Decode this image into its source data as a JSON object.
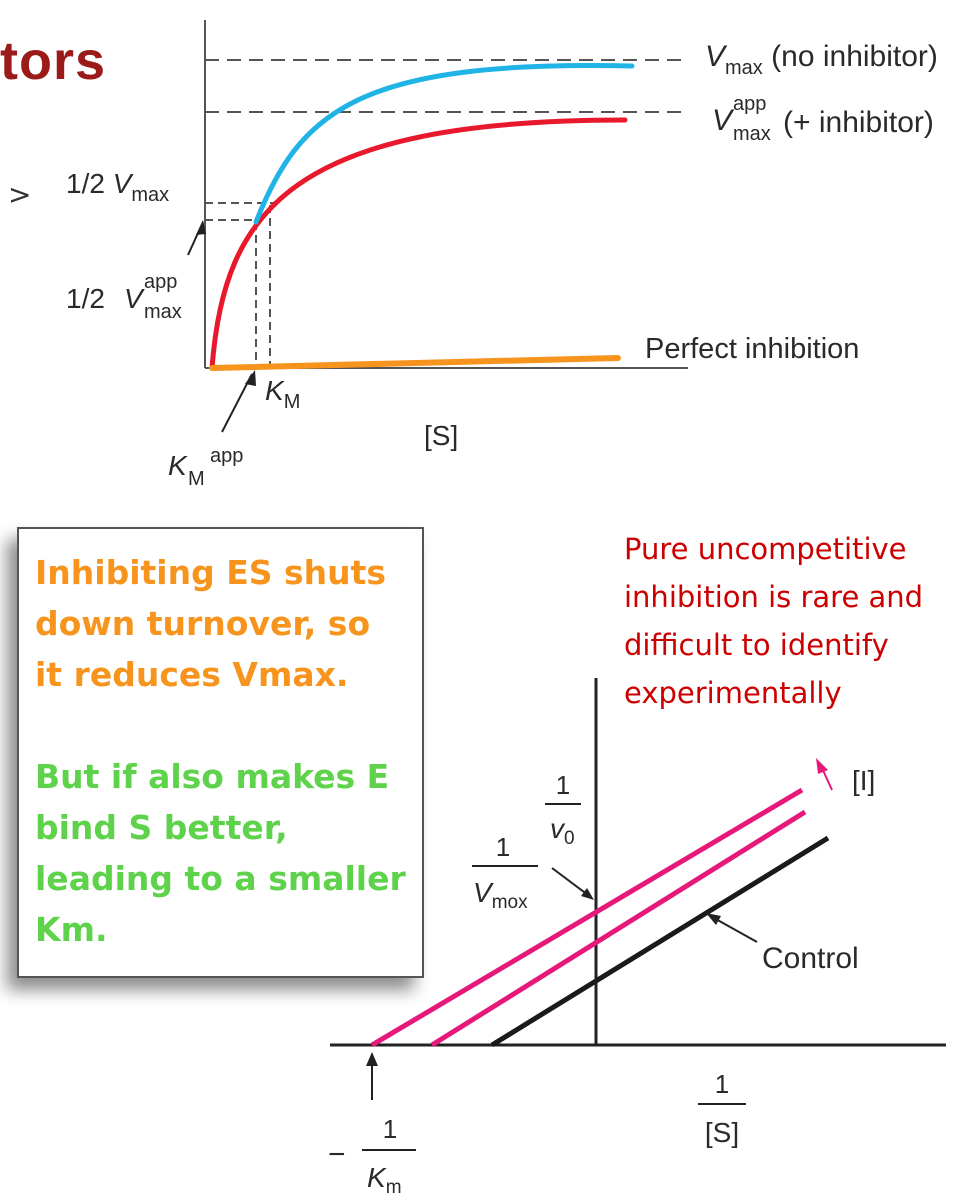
{
  "slide": {
    "title_fragment": "tors",
    "stray_mark": ">"
  },
  "top_chart": {
    "x_axis_label": "[S]",
    "labels": {
      "vmax": {
        "base": "V",
        "sub": "max",
        "suffix": " (no inhibitor)"
      },
      "vmax_app": {
        "base": "V",
        "sup": "app",
        "sub": "max",
        "suffix": "(+ inhibitor)"
      },
      "half_vmax": {
        "prefix": "1/2 ",
        "base": "V",
        "sub": "max"
      },
      "half_vmax_app": {
        "prefix": "1/2 ",
        "base": "V",
        "sup": "app",
        "sub": "max"
      },
      "km": {
        "base": "K",
        "sub": "M"
      },
      "km_app": {
        "base": "K",
        "sub": "M",
        "sup": "app"
      },
      "perfect": "Perfect inhibition"
    },
    "colors": {
      "no_inhibitor": "#1fb3e6",
      "with_inhibitor": "#e8192c",
      "perfect": "#f7941d"
    }
  },
  "info_box": {
    "orange_text": "Inhibiting ES shuts down turnover, so it reduces Vmax.",
    "green_text": "But if also makes E bind S better, leading to a smaller Km."
  },
  "note": {
    "text": "Pure uncompetitive inhibition is rare and difficult to identify experimentally"
  },
  "bottom_chart": {
    "y_axis": {
      "num": "1",
      "den_base": "v",
      "den_sub": "0"
    },
    "x_axis": {
      "num": "1",
      "den": "[S]"
    },
    "intercept_y": {
      "num": "1",
      "den_base": "V",
      "den_sub": "mox"
    },
    "intercept_x": {
      "sign": "−",
      "num": "1",
      "den_base": "K",
      "den_sub": "m"
    },
    "inhibitor_label": "[I]",
    "control_label": "Control",
    "colors": {
      "inhibited": "#e6197a",
      "control": "#1a1a1a"
    }
  }
}
